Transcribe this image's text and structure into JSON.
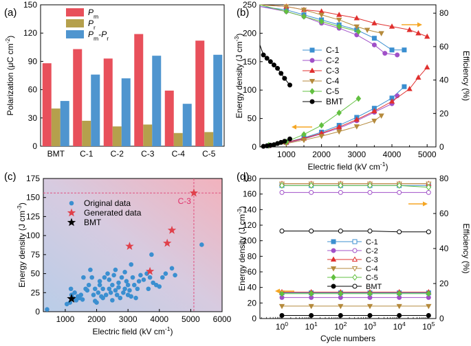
{
  "chart_data": [
    {
      "panel": "(a)",
      "type": "bar",
      "ylabel": "Polarization (μC cm⁻²)",
      "ylim": [
        0,
        150
      ],
      "yticks": [
        0,
        30,
        60,
        90,
        120,
        150
      ],
      "categories": [
        "BMT",
        "C-1",
        "C-2",
        "C-3",
        "C-4",
        "C-5"
      ],
      "legend_placement": "top-left",
      "series": [
        {
          "name": "Pm",
          "legend": [
            "P",
            "m"
          ],
          "color": "#e8505b",
          "values": [
            88,
            103,
            93,
            119,
            59,
            112
          ]
        },
        {
          "name": "Pr",
          "legend": [
            "P",
            "r"
          ],
          "color": "#b5a04c",
          "values": [
            40,
            27,
            21,
            23,
            14,
            15
          ]
        },
        {
          "name": "Pm-Pr",
          "legend": [
            "P",
            "m",
            "-",
            "P",
            "r"
          ],
          "color": "#4f95cf",
          "values": [
            48,
            76,
            72,
            96,
            45,
            97
          ]
        }
      ]
    },
    {
      "panel": "(b)",
      "type": "line",
      "xlabel": "Electric field (kV cm⁻¹)",
      "ylabel": "Energy density (J cm⁻³)",
      "y2label": "Efficiency (%)",
      "xlim": [
        250,
        5250
      ],
      "ylim": [
        0,
        250
      ],
      "y2lim": [
        0,
        85
      ],
      "xticks": [
        500,
        1000,
        1500,
        2000,
        2500,
        3000,
        3500,
        4000,
        4500,
        5000
      ],
      "xticklabels": [
        "",
        "1000",
        "",
        "2000",
        "",
        "3000",
        "",
        "4000",
        "",
        "5000"
      ],
      "yticks": [
        0,
        50,
        100,
        150,
        200,
        250
      ],
      "y2ticks": [
        0,
        20,
        40,
        60,
        80
      ],
      "legend_placement": "center-left",
      "series": [
        {
          "name": "C-1",
          "color": "#3b8fd0",
          "marker": "square",
          "energy": [
            [
              250,
              0
            ],
            [
              500,
              2
            ],
            [
              1000,
              8
            ],
            [
              1500,
              16
            ],
            [
              2000,
              26
            ],
            [
              2500,
              38
            ],
            [
              3000,
              52
            ],
            [
              3500,
              68
            ],
            [
              4000,
              86
            ],
            [
              4350,
              106
            ]
          ],
          "efficiency": [
            [
              250,
              84
            ],
            [
              1000,
              82
            ],
            [
              1500,
              79
            ],
            [
              2000,
              76
            ],
            [
              2500,
              73
            ],
            [
              3000,
              70
            ],
            [
              3500,
              65
            ],
            [
              4000,
              58
            ],
            [
              4350,
              58
            ]
          ]
        },
        {
          "name": "C-2",
          "color": "#a050c8",
          "marker": "circle",
          "energy": [
            [
              250,
              0
            ],
            [
              500,
              2
            ],
            [
              1000,
              7
            ],
            [
              1500,
              14
            ],
            [
              2000,
              23
            ],
            [
              2500,
              33
            ],
            [
              3000,
              46
            ],
            [
              3500,
              61
            ],
            [
              4000,
              76
            ],
            [
              4150,
              90
            ]
          ],
          "efficiency": [
            [
              250,
              84
            ],
            [
              1000,
              81
            ],
            [
              1500,
              78
            ],
            [
              2000,
              74
            ],
            [
              2500,
              71
            ],
            [
              3000,
              67
            ],
            [
              3500,
              61
            ],
            [
              3800,
              56
            ],
            [
              4150,
              55
            ]
          ]
        },
        {
          "name": "C-3",
          "color": "#e0302f",
          "marker": "triangle-up",
          "energy": [
            [
              250,
              0
            ],
            [
              500,
              2
            ],
            [
              1000,
              8
            ],
            [
              1500,
              15
            ],
            [
              2000,
              24
            ],
            [
              2500,
              35
            ],
            [
              3000,
              48
            ],
            [
              3500,
              63
            ],
            [
              4000,
              80
            ],
            [
              4500,
              102
            ],
            [
              4750,
              122
            ],
            [
              5000,
              140
            ]
          ],
          "efficiency": [
            [
              250,
              85
            ],
            [
              1000,
              84
            ],
            [
              1500,
              82
            ],
            [
              2000,
              81
            ],
            [
              2500,
              79
            ],
            [
              3000,
              77
            ],
            [
              3500,
              74
            ],
            [
              4000,
              72
            ],
            [
              4500,
              70
            ],
            [
              4750,
              68
            ],
            [
              5000,
              66
            ]
          ]
        },
        {
          "name": "C-4",
          "color": "#b58a3c",
          "marker": "triangle-down",
          "energy": [
            [
              250,
              0
            ],
            [
              500,
              2
            ],
            [
              1000,
              6
            ],
            [
              1500,
              12
            ],
            [
              2000,
              19
            ],
            [
              2500,
              27
            ],
            [
              3000,
              36
            ],
            [
              3500,
              46
            ],
            [
              3700,
              55
            ]
          ],
          "efficiency": [
            [
              250,
              85
            ],
            [
              1000,
              84
            ],
            [
              1500,
              82
            ],
            [
              2000,
              79
            ],
            [
              2500,
              76
            ],
            [
              3000,
              72
            ],
            [
              3300,
              70
            ],
            [
              3700,
              68
            ]
          ]
        },
        {
          "name": "C-5",
          "color": "#62c040",
          "marker": "diamond",
          "energy": [
            [
              250,
              0
            ],
            [
              500,
              3
            ],
            [
              1000,
              9
            ],
            [
              1500,
              22
            ],
            [
              2000,
              38
            ],
            [
              2500,
              60
            ],
            [
              3050,
              85
            ]
          ],
          "efficiency": [
            [
              250,
              85
            ],
            [
              1000,
              81
            ],
            [
              1500,
              78
            ],
            [
              2000,
              75
            ],
            [
              2500,
              72
            ],
            [
              3050,
              69
            ]
          ]
        },
        {
          "name": "BMT",
          "color": "#000000",
          "marker": "circle",
          "energy": [
            [
              250,
              0
            ],
            [
              350,
              1
            ],
            [
              450,
              2
            ],
            [
              550,
              3
            ],
            [
              650,
              4
            ],
            [
              750,
              6
            ],
            [
              850,
              8
            ],
            [
              950,
              10
            ],
            [
              1100,
              14
            ]
          ],
          "efficiency": [
            [
              250,
              61
            ],
            [
              350,
              55
            ],
            [
              450,
              53
            ],
            [
              550,
              51
            ],
            [
              650,
              49
            ],
            [
              750,
              47
            ],
            [
              850,
              44
            ],
            [
              950,
              41
            ],
            [
              1100,
              37
            ]
          ]
        }
      ]
    },
    {
      "panel": "(c)",
      "type": "scatter",
      "xlabel": "Electric field (kV cm⁻¹)",
      "ylabel": "Energy density (J cm⁻³)",
      "xlim": [
        300,
        6000
      ],
      "ylim": [
        0,
        175
      ],
      "xticks": [
        1000,
        2000,
        3000,
        4000,
        5000,
        6000
      ],
      "yticks": [
        0,
        25,
        50,
        75,
        100,
        125,
        150,
        175
      ],
      "legend_placement": "top-left",
      "annotation": "C-3",
      "series": [
        {
          "name": "Original  data",
          "color": "#3b8fd0",
          "marker": "circle",
          "points": [
            [
              420,
              3
            ],
            [
              1050,
              10
            ],
            [
              1150,
              12
            ],
            [
              1200,
              22
            ],
            [
              1180,
              30
            ],
            [
              1250,
              18
            ],
            [
              1300,
              25
            ],
            [
              1350,
              15
            ],
            [
              1400,
              20
            ],
            [
              1450,
              18
            ],
            [
              1500,
              22
            ],
            [
              1550,
              16
            ],
            [
              1580,
              45
            ],
            [
              1650,
              30
            ],
            [
              1700,
              28
            ],
            [
              1750,
              35
            ],
            [
              1800,
              55
            ],
            [
              1850,
              45
            ],
            [
              1900,
              22
            ],
            [
              1950,
              30
            ],
            [
              1950,
              14
            ],
            [
              2000,
              12
            ],
            [
              2050,
              25
            ],
            [
              2100,
              35
            ],
            [
              2100,
              40
            ],
            [
              2150,
              20
            ],
            [
              2200,
              18
            ],
            [
              2200,
              30
            ],
            [
              2250,
              45
            ],
            [
              2300,
              22
            ],
            [
              2350,
              50
            ],
            [
              2400,
              30
            ],
            [
              2400,
              42
            ],
            [
              2450,
              25
            ],
            [
              2500,
              15
            ],
            [
              2500,
              35
            ],
            [
              2550,
              48
            ],
            [
              2600,
              55
            ],
            [
              2600,
              28
            ],
            [
              2650,
              22
            ],
            [
              2700,
              38
            ],
            [
              2700,
              32
            ],
            [
              2750,
              18
            ],
            [
              2800,
              45
            ],
            [
              2850,
              25
            ],
            [
              2900,
              30
            ],
            [
              2900,
              52
            ],
            [
              2950,
              40
            ],
            [
              3000,
              35
            ],
            [
              3000,
              22
            ],
            [
              3050,
              28
            ],
            [
              3100,
              62
            ],
            [
              3100,
              20
            ],
            [
              3150,
              45
            ],
            [
              3200,
              35
            ],
            [
              3250,
              18
            ],
            [
              3300,
              30
            ],
            [
              3350,
              40
            ],
            [
              3400,
              48
            ],
            [
              3500,
              42
            ],
            [
              3600,
              50
            ],
            [
              3650,
              30
            ],
            [
              3700,
              45
            ],
            [
              3750,
              75
            ],
            [
              3800,
              38
            ],
            [
              3900,
              35
            ],
            [
              4000,
              33
            ],
            [
              4100,
              45
            ],
            [
              4200,
              50
            ],
            [
              4400,
              57
            ],
            [
              4500,
              48
            ],
            [
              5350,
              88
            ]
          ]
        },
        {
          "name": "Generated data",
          "color": "#e0404a",
          "marker": "star",
          "points": [
            [
              3050,
              86
            ],
            [
              3700,
              53
            ],
            [
              4250,
              90
            ],
            [
              4400,
              107
            ],
            [
              5100,
              156
            ]
          ]
        },
        {
          "name": "BMT",
          "color": "#000000",
          "marker": "star",
          "points": [
            [
              1200,
              17
            ]
          ]
        }
      ]
    },
    {
      "panel": "(d)",
      "type": "line",
      "xlabel": "Cycle numbers",
      "ylabel": "Energy density (J cm⁻³)",
      "y2label": "Efficiency (%)",
      "xscale": "log",
      "x": [
        1,
        10,
        100,
        1000,
        10000,
        100000
      ],
      "xticks": [
        "10",
        "10",
        "10",
        "10",
        "10",
        "10"
      ],
      "xtick_exponents": [
        "0",
        "1",
        "2",
        "3",
        "4",
        "5"
      ],
      "ylim": [
        0,
        180
      ],
      "y2lim": [
        0,
        80
      ],
      "yticks": [
        0,
        20,
        40,
        60,
        80,
        100,
        120,
        140,
        160,
        180
      ],
      "y2ticks": [
        0,
        20,
        40,
        60,
        80
      ],
      "legend_placement": "center",
      "series": [
        {
          "name": "C-1",
          "color": "#3b8fd0",
          "marker": "square",
          "energy": [
            33,
            33,
            33,
            33,
            33,
            33
          ],
          "efficiency": [
            76,
            76,
            76,
            76,
            76,
            76
          ]
        },
        {
          "name": "C-2",
          "color": "#a050c8",
          "marker": "circle",
          "energy": [
            27,
            27,
            27,
            27,
            27,
            27
          ],
          "efficiency": [
            72,
            72,
            72,
            72,
            72,
            72
          ]
        },
        {
          "name": "C-3",
          "color": "#e0302f",
          "marker": "triangle-up",
          "energy": [
            34,
            34,
            34,
            34,
            34,
            34
          ],
          "efficiency": [
            77,
            77,
            77,
            77,
            77,
            77
          ]
        },
        {
          "name": "C-4",
          "color": "#b58a3c",
          "marker": "triangle-down",
          "energy": [
            16,
            16,
            16,
            16,
            16,
            16
          ],
          "efficiency": [
            77,
            77,
            77,
            77,
            77,
            77
          ]
        },
        {
          "name": "C-5",
          "color": "#62c040",
          "marker": "diamond",
          "energy": [
            32,
            32,
            32,
            32,
            32,
            32
          ],
          "efficiency": [
            76,
            76,
            76,
            76,
            76,
            75
          ]
        },
        {
          "name": "BMT",
          "color": "#000000",
          "marker": "circle",
          "energy": [
            4,
            4,
            4,
            4,
            4,
            4
          ],
          "efficiency": [
            50,
            50,
            50,
            50,
            49.5,
            49.5
          ]
        }
      ]
    }
  ]
}
